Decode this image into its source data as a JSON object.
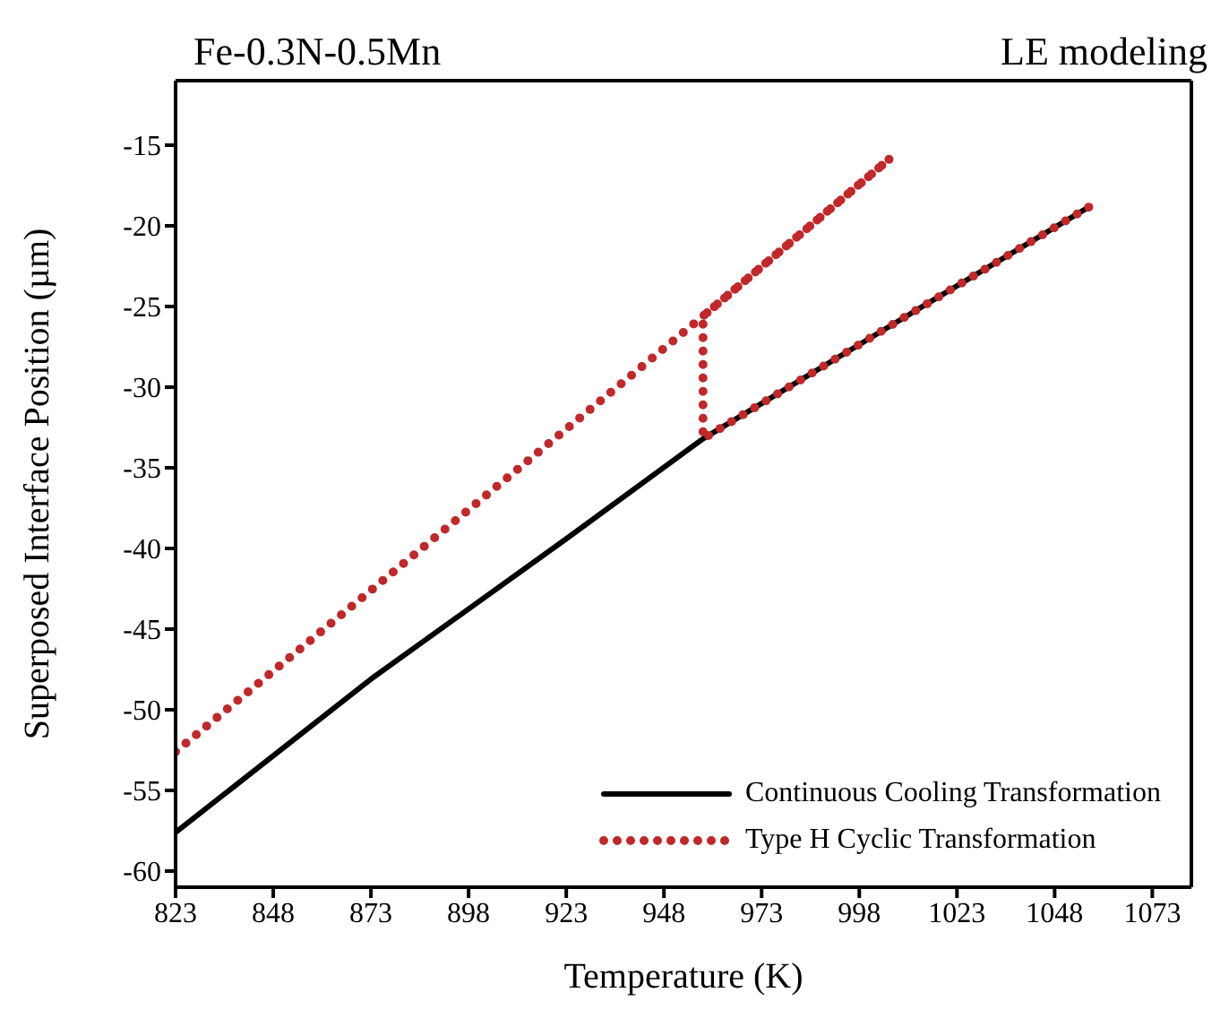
{
  "chart_data": {
    "type": "line",
    "title": "Fe-0.3N-0.5Mn",
    "annotations": [
      "LE modeling"
    ],
    "xlabel": "Temperature (K)",
    "ylabel": "Superposed Interface Position (µm)",
    "xlim": [
      823,
      1083
    ],
    "xticks": [
      823,
      848,
      873,
      898,
      923,
      948,
      973,
      998,
      1023,
      1048,
      1073
    ],
    "ylim": [
      -61,
      -11
    ],
    "yticks": [
      -60,
      -55,
      -50,
      -45,
      -40,
      -35,
      -30,
      -25,
      -20,
      -15
    ],
    "legend": "bottom right",
    "marker": "none",
    "series": [
      {
        "name": "Continuous Cooling Transformation",
        "color": "#000000",
        "line_style": "solid",
        "x": [
          823,
          873,
          923,
          958,
          1008,
          1057
        ],
        "values": [
          -57.6,
          -48.1,
          -39.4,
          -33.2,
          -25.9,
          -18.8
        ]
      },
      {
        "name": "Type H Cyclic Transformation",
        "color": "#c0282a",
        "line_style": "dotted",
        "x": [
          823,
          958,
          1006,
          958,
          958,
          1008,
          1057
        ],
        "values": [
          -52.6,
          -25.6,
          -15.8,
          -25.6,
          -33.2,
          -25.9,
          -18.8
        ]
      }
    ]
  }
}
